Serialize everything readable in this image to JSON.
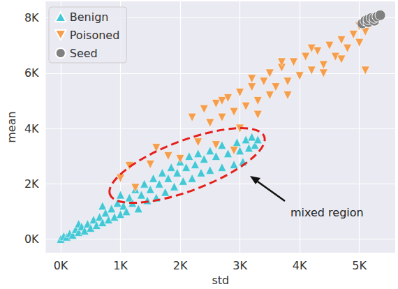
{
  "chart_data": {
    "type": "scatter",
    "x_label": "std",
    "y_label": "mean",
    "xlim": [
      -250,
      5600
    ],
    "ylim": [
      -500,
      8600
    ],
    "xticks": [
      {
        "value": 0,
        "label": "0K"
      },
      {
        "value": 1000,
        "label": "1K"
      },
      {
        "value": 2000,
        "label": "2K"
      },
      {
        "value": 3000,
        "label": "3K"
      },
      {
        "value": 4000,
        "label": "4K"
      },
      {
        "value": 5000,
        "label": "5K"
      }
    ],
    "yticks": [
      {
        "value": 0,
        "label": "0K"
      },
      {
        "value": 2000,
        "label": "2K"
      },
      {
        "value": 4000,
        "label": "4K"
      },
      {
        "value": 6000,
        "label": "6K"
      },
      {
        "value": 8000,
        "label": "8K"
      }
    ],
    "grid": true,
    "legend": "upper left",
    "annotations": [
      {
        "text": "mixed region"
      }
    ],
    "series": [
      {
        "name": "Benign",
        "color": "#45c8d6",
        "marker": "triangle_up",
        "values": [
          [
            0,
            0
          ],
          [
            50,
            100
          ],
          [
            100,
            80
          ],
          [
            150,
            200
          ],
          [
            200,
            150
          ],
          [
            250,
            350
          ],
          [
            300,
            250
          ],
          [
            300,
            550
          ],
          [
            350,
            450
          ],
          [
            400,
            300
          ],
          [
            450,
            550
          ],
          [
            500,
            400
          ],
          [
            550,
            700
          ],
          [
            600,
            500
          ],
          [
            650,
            800
          ],
          [
            700,
            600
          ],
          [
            700,
            1200
          ],
          [
            750,
            950
          ],
          [
            800,
            700
          ],
          [
            850,
            1100
          ],
          [
            900,
            800
          ],
          [
            950,
            1300
          ],
          [
            1000,
            900
          ],
          [
            1000,
            1600
          ],
          [
            1050,
            1200
          ],
          [
            1100,
            1000
          ],
          [
            1150,
            1500
          ],
          [
            1200,
            1300
          ],
          [
            1250,
            1800
          ],
          [
            1300,
            1100
          ],
          [
            1350,
            1600
          ],
          [
            1400,
            2000
          ],
          [
            1450,
            1400
          ],
          [
            1500,
            1800
          ],
          [
            1550,
            2200
          ],
          [
            1600,
            1500
          ],
          [
            1650,
            2000
          ],
          [
            1700,
            2400
          ],
          [
            1750,
            1700
          ],
          [
            1800,
            2200
          ],
          [
            1850,
            2600
          ],
          [
            1900,
            1900
          ],
          [
            1950,
            2400
          ],
          [
            2000,
            2800
          ],
          [
            2050,
            2100
          ],
          [
            2100,
            2600
          ],
          [
            2150,
            3000
          ],
          [
            2200,
            2200
          ],
          [
            2250,
            2700
          ],
          [
            2300,
            3100
          ],
          [
            2350,
            2400
          ],
          [
            2400,
            2900
          ],
          [
            2500,
            3200
          ],
          [
            2500,
            2500
          ],
          [
            2600,
            3000
          ],
          [
            2700,
            2600
          ],
          [
            2700,
            3400
          ],
          [
            2800,
            3100
          ],
          [
            2900,
            2700
          ],
          [
            2950,
            3500
          ],
          [
            3000,
            3200
          ],
          [
            3050,
            2800
          ],
          [
            3100,
            3600
          ],
          [
            3150,
            3300
          ],
          [
            3200,
            3700
          ],
          [
            3250,
            3400
          ],
          [
            3300,
            3600
          ]
        ]
      },
      {
        "name": "Poisoned",
        "color": "#f59e4c",
        "marker": "triangle_down",
        "values": [
          [
            1000,
            2200
          ],
          [
            1150,
            2650
          ],
          [
            1250,
            1850
          ],
          [
            1500,
            2700
          ],
          [
            1600,
            3300
          ],
          [
            1800,
            3000
          ],
          [
            2000,
            2900
          ],
          [
            2300,
            3500
          ],
          [
            2600,
            3400
          ],
          [
            2900,
            3200
          ],
          [
            2200,
            4400
          ],
          [
            2400,
            4700
          ],
          [
            2500,
            4200
          ],
          [
            2600,
            4900
          ],
          [
            2700,
            4400
          ],
          [
            2700,
            5000
          ],
          [
            2800,
            5100
          ],
          [
            2900,
            4600
          ],
          [
            3000,
            4000
          ],
          [
            3000,
            5300
          ],
          [
            3100,
            4800
          ],
          [
            3200,
            5500
          ],
          [
            3200,
            5800
          ],
          [
            3300,
            4500
          ],
          [
            3300,
            5000
          ],
          [
            3400,
            5700
          ],
          [
            3500,
            5200
          ],
          [
            3500,
            6000
          ],
          [
            3600,
            5500
          ],
          [
            3700,
            6200
          ],
          [
            3700,
            6400
          ],
          [
            3800,
            5200
          ],
          [
            3800,
            5700
          ],
          [
            3900,
            6400
          ],
          [
            4000,
            5900
          ],
          [
            4100,
            6600
          ],
          [
            4200,
            6100
          ],
          [
            4200,
            6900
          ],
          [
            4300,
            6800
          ],
          [
            4400,
            6000
          ],
          [
            4400,
            6300
          ],
          [
            4500,
            7000
          ],
          [
            4600,
            6600
          ],
          [
            4700,
            6500
          ],
          [
            4700,
            7200
          ],
          [
            4800,
            6900
          ],
          [
            4900,
            7400
          ],
          [
            5000,
            7100
          ],
          [
            5000,
            7700
          ],
          [
            5100,
            7500
          ],
          [
            5100,
            6100
          ],
          [
            5200,
            7800
          ]
        ]
      },
      {
        "name": "Seed",
        "color": "#808080",
        "marker": "circle",
        "values": [
          [
            5050,
            7800
          ],
          [
            5100,
            7900
          ],
          [
            5150,
            7850
          ],
          [
            5150,
            7950
          ],
          [
            5200,
            8000
          ],
          [
            5250,
            7900
          ],
          [
            5250,
            8000
          ],
          [
            5300,
            8050
          ],
          [
            5350,
            8100
          ]
        ]
      }
    ]
  }
}
